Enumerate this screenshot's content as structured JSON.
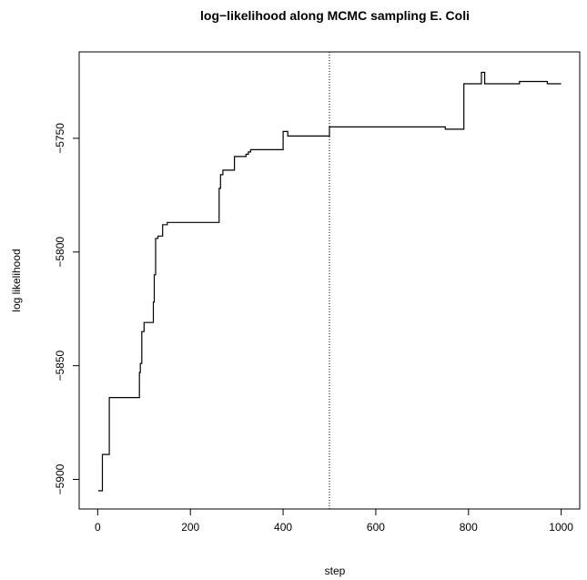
{
  "chart_data": {
    "type": "line",
    "line_style": "step",
    "title": "log−likelihood along MCMC sampling E. Coli",
    "xlabel": "step",
    "ylabel": "log likelihood",
    "xlim": [
      -40,
      1040
    ],
    "ylim": [
      -5913,
      -5712
    ],
    "x_ticks": [
      0,
      200,
      400,
      600,
      800,
      1000
    ],
    "x_tick_labels": [
      "0",
      "200",
      "400",
      "600",
      "800",
      "1000"
    ],
    "y_ticks": [
      -5900,
      -5850,
      -5800,
      -5750
    ],
    "y_tick_labels": [
      "−5900",
      "−5850",
      "−5800",
      "−5750"
    ],
    "grid": false,
    "reference_line": {
      "x": 500,
      "style": "dotted"
    },
    "series": [
      {
        "x": [
          1,
          10,
          25,
          90,
          92,
          95,
          100,
          120,
          122,
          125,
          130,
          140,
          150,
          260,
          262,
          265,
          270,
          290,
          295,
          320,
          325,
          330,
          340,
          400,
          402,
          410,
          480,
          500,
          740,
          750,
          790,
          800,
          825,
          828,
          832,
          835,
          905,
          910,
          970,
          1000
        ],
        "y": [
          -5905,
          -5889,
          -5864,
          -5853,
          -5849,
          -5835,
          -5831,
          -5822,
          -5810,
          -5794,
          -5793,
          -5788,
          -5787,
          -5787,
          -5772,
          -5766,
          -5764,
          -5764,
          -5758,
          -5757,
          -5756,
          -5755,
          -5755,
          -5747,
          -5747,
          -5749,
          -5749,
          -5745,
          -5745,
          -5746,
          -5726,
          -5726,
          -5726,
          -5721,
          -5721,
          -5726,
          -5726,
          -5725,
          -5726,
          -5726
        ]
      }
    ]
  }
}
